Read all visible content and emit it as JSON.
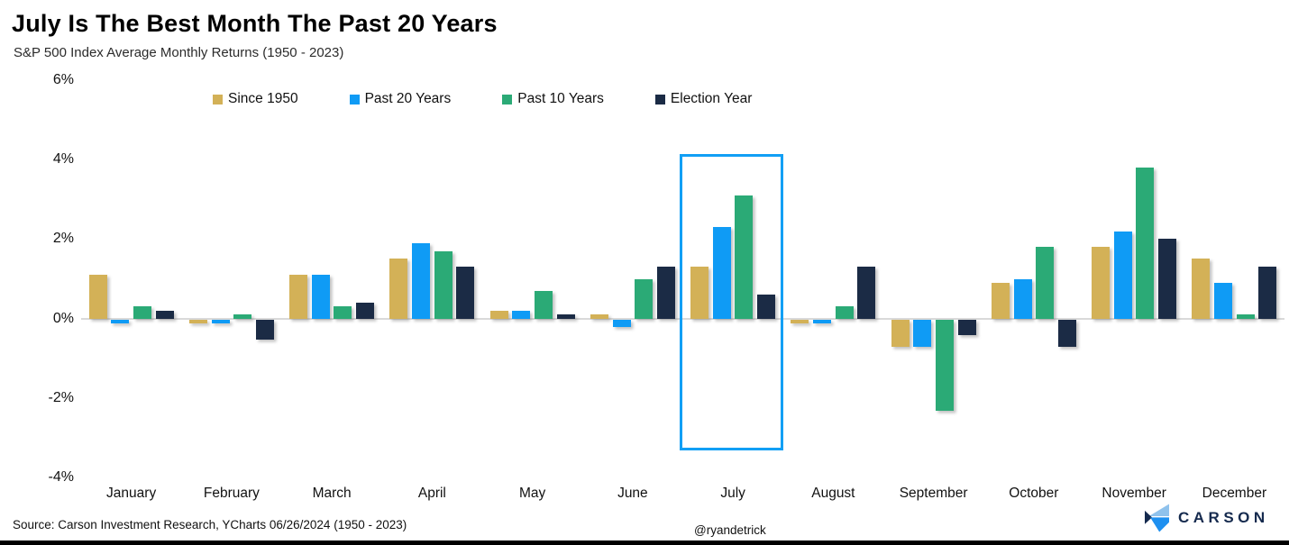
{
  "page": {
    "title": "July Is The Best Month The Past 20 Years",
    "subtitle": "S&P 500 Index Average Monthly Returns (1950 - 2023)"
  },
  "chart_data": {
    "type": "bar",
    "title": "July Is The Best Month The Past 20 Years",
    "subtitle": "S&P 500 Index Average Monthly Returns (1950 - 2023)",
    "categories": [
      "January",
      "February",
      "March",
      "April",
      "May",
      "June",
      "July",
      "August",
      "September",
      "October",
      "November",
      "December"
    ],
    "series": [
      {
        "name": "Since 1950",
        "color": "#d3b157",
        "values": [
          1.1,
          -0.1,
          1.1,
          1.5,
          0.2,
          0.1,
          1.3,
          -0.1,
          -0.7,
          0.9,
          1.8,
          1.5
        ]
      },
      {
        "name": "Past 20 Years",
        "color": "#0f9bf5",
        "values": [
          -0.1,
          -0.1,
          1.1,
          1.9,
          0.2,
          -0.2,
          2.3,
          -0.1,
          -0.7,
          1.0,
          2.2,
          0.9
        ]
      },
      {
        "name": "Past 10 Years",
        "color": "#2baa76",
        "values": [
          0.3,
          0.1,
          0.3,
          1.7,
          0.7,
          1.0,
          3.1,
          0.3,
          -2.3,
          1.8,
          3.8,
          0.1
        ]
      },
      {
        "name": "Election Year",
        "color": "#1b2b45",
        "values": [
          0.2,
          -0.5,
          0.4,
          1.3,
          0.1,
          1.3,
          0.6,
          1.3,
          -0.4,
          -0.7,
          2.0,
          1.3
        ]
      }
    ],
    "ylim": [
      -4,
      6
    ],
    "yticks": [
      6,
      4,
      2,
      0,
      -2,
      -4
    ],
    "ytick_labels": [
      "6%",
      "4%",
      "2%",
      "0%",
      "-2%",
      "-4%"
    ],
    "grid": false,
    "legend_position": "top",
    "axis_line_color": "#d9d9d9",
    "highlight": {
      "month": "July",
      "color": "#129ff5"
    }
  },
  "footer": {
    "source": "Source: Carson Investment Research, YCharts 06/26/2024 (1950 - 2023)",
    "handle": "@ryandetrick"
  },
  "brand": {
    "name": "CARSON",
    "text_color": "#152a4e",
    "logo_colors": {
      "light": "#8fc2ec",
      "mid": "#1e90f0",
      "dark": "#152a4e"
    }
  }
}
